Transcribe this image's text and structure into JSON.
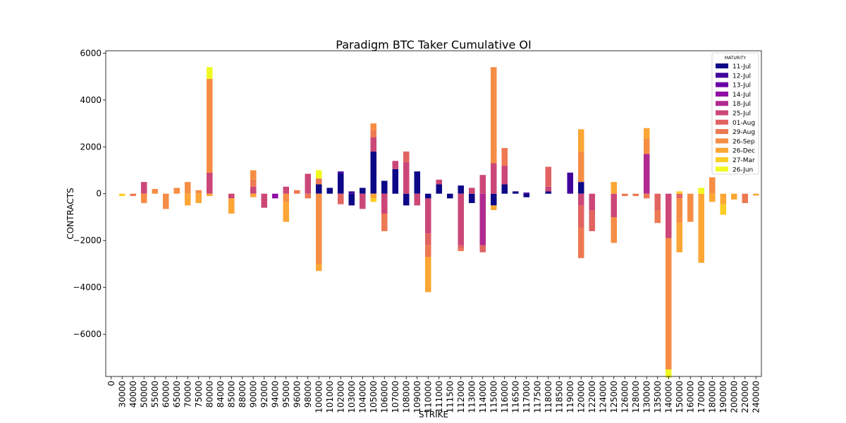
{
  "chart_data": {
    "type": "bar",
    "stacked": true,
    "title": "Paradigm BTC Taker Cumulative OI",
    "xlabel": "STRIKE",
    "ylabel": "CONTRACTS",
    "ylim": [
      -7800,
      6100
    ],
    "yticks": [
      -6000,
      -4000,
      -2000,
      0,
      2000,
      4000,
      6000
    ],
    "ytick_labels": [
      "−6000",
      "−4000",
      "−2000",
      "0",
      "2000",
      "4000",
      "6000"
    ],
    "legend_placement": "top-right",
    "legend_title": "MATURITY",
    "categories": [
      "0",
      "30000",
      "40000",
      "50000",
      "55000",
      "60000",
      "65000",
      "70000",
      "75000",
      "80000",
      "84000",
      "85000",
      "88000",
      "90000",
      "92000",
      "94000",
      "95000",
      "96000",
      "98000",
      "100000",
      "101000",
      "102000",
      "103000",
      "104000",
      "105000",
      "106000",
      "107000",
      "108000",
      "109000",
      "110000",
      "111000",
      "111500",
      "112000",
      "113000",
      "114000",
      "115000",
      "116000",
      "116500",
      "117000",
      "117500",
      "118000",
      "118500",
      "119000",
      "120000",
      "122000",
      "124000",
      "125000",
      "126000",
      "128000",
      "130000",
      "135000",
      "140000",
      "150000",
      "160000",
      "170000",
      "180000",
      "190000",
      "200000",
      "220000",
      "240000"
    ],
    "series": [
      {
        "name": "11-Jul",
        "color": "#0d0887",
        "values": [
          0,
          0,
          0,
          0,
          0,
          0,
          0,
          0,
          0,
          0,
          0,
          0,
          0,
          0,
          0,
          0,
          0,
          0,
          0,
          400,
          250,
          850,
          -500,
          250,
          1800,
          550,
          1050,
          -500,
          950,
          -200,
          400,
          -200,
          350,
          -400,
          0,
          -500,
          400,
          100,
          -150,
          0,
          100,
          0,
          0,
          500,
          0,
          0,
          0,
          0,
          0,
          0,
          0,
          0,
          0,
          0,
          0,
          0,
          0,
          0,
          0,
          0
        ]
      },
      {
        "name": "12-Jul",
        "color": "#41049d",
        "values": [
          0,
          0,
          0,
          0,
          0,
          0,
          0,
          0,
          0,
          0,
          0,
          0,
          0,
          0,
          0,
          0,
          0,
          0,
          0,
          0,
          0,
          100,
          100,
          0,
          0,
          0,
          0,
          0,
          0,
          0,
          0,
          0,
          0,
          0,
          0,
          0,
          0,
          0,
          50,
          0,
          0,
          0,
          900,
          0,
          0,
          0,
          0,
          0,
          0,
          0,
          0,
          0,
          0,
          0,
          0,
          0,
          0,
          0,
          0,
          0
        ]
      },
      {
        "name": "13-Jul",
        "color": "#6a00a8",
        "values": [
          0,
          0,
          0,
          0,
          0,
          0,
          0,
          0,
          0,
          0,
          0,
          0,
          0,
          0,
          0,
          0,
          0,
          0,
          0,
          0,
          0,
          0,
          0,
          0,
          0,
          0,
          0,
          0,
          0,
          0,
          0,
          0,
          0,
          0,
          0,
          0,
          0,
          0,
          0,
          0,
          0,
          0,
          0,
          0,
          0,
          0,
          0,
          0,
          0,
          0,
          0,
          0,
          0,
          0,
          0,
          0,
          0,
          0,
          0,
          0
        ]
      },
      {
        "name": "14-Jul",
        "color": "#8f0da4",
        "values": [
          0,
          0,
          0,
          0,
          0,
          0,
          0,
          0,
          0,
          0,
          0,
          0,
          0,
          0,
          0,
          -200,
          0,
          0,
          0,
          0,
          0,
          0,
          0,
          0,
          0,
          0,
          0,
          0,
          0,
          0,
          0,
          0,
          0,
          0,
          0,
          0,
          0,
          0,
          0,
          0,
          0,
          0,
          0,
          0,
          0,
          0,
          0,
          0,
          0,
          0,
          0,
          0,
          0,
          0,
          0,
          0,
          0,
          0,
          0,
          0
        ]
      },
      {
        "name": "18-Jul",
        "color": "#b12a90",
        "values": [
          0,
          0,
          0,
          0,
          0,
          0,
          0,
          0,
          0,
          0,
          0,
          0,
          0,
          0,
          0,
          0,
          0,
          0,
          0,
          0,
          0,
          0,
          0,
          0,
          0,
          0,
          0,
          0,
          0,
          0,
          0,
          0,
          0,
          0,
          -2200,
          0,
          0,
          0,
          0,
          0,
          0,
          0,
          0,
          0,
          0,
          0,
          0,
          0,
          0,
          1700,
          0,
          0,
          0,
          0,
          0,
          0,
          0,
          0,
          0,
          0
        ]
      },
      {
        "name": "25-Jul",
        "color": "#cc4778",
        "values": [
          0,
          0,
          0,
          500,
          0,
          0,
          0,
          0,
          0,
          900,
          0,
          -200,
          0,
          300,
          -600,
          0,
          300,
          0,
          850,
          0,
          0,
          0,
          0,
          -650,
          600,
          -850,
          350,
          1350,
          -500,
          -1500,
          200,
          0,
          -2200,
          250,
          800,
          1300,
          800,
          0,
          0,
          0,
          200,
          0,
          0,
          -500,
          -700,
          0,
          -1000,
          0,
          0,
          0,
          0,
          -1900,
          0,
          0,
          0,
          0,
          0,
          0,
          0,
          0
        ]
      },
      {
        "name": "01-Aug",
        "color": "#e16462",
        "values": [
          0,
          0,
          0,
          0,
          0,
          0,
          0,
          0,
          0,
          0,
          0,
          0,
          0,
          0,
          0,
          0,
          0,
          0,
          0,
          0,
          0,
          -450,
          0,
          0,
          0,
          0,
          0,
          450,
          0,
          -500,
          0,
          0,
          -150,
          0,
          -300,
          0,
          0,
          0,
          0,
          0,
          850,
          0,
          0,
          -950,
          -900,
          0,
          0,
          0,
          0,
          0,
          -700,
          0,
          -200,
          0,
          0,
          0,
          0,
          0,
          0,
          0
        ]
      },
      {
        "name": "29-Aug",
        "color": "#ed7953",
        "values": [
          0,
          0,
          -100,
          0,
          0,
          0,
          0,
          0,
          0,
          0,
          0,
          0,
          0,
          300,
          0,
          0,
          0,
          150,
          -200,
          250,
          0,
          0,
          0,
          0,
          300,
          -750,
          0,
          0,
          0,
          -500,
          0,
          0,
          -100,
          0,
          0,
          0,
          750,
          0,
          0,
          0,
          0,
          0,
          0,
          -1300,
          0,
          0,
          0,
          -100,
          -100,
          -200,
          -550,
          0,
          0,
          0,
          0,
          0,
          0,
          0,
          -400,
          0
        ]
      },
      {
        "name": "26-Sep",
        "color": "#f68d45",
        "values": [
          0,
          0,
          0,
          -400,
          200,
          -650,
          250,
          500,
          150,
          4000,
          0,
          0,
          0,
          400,
          0,
          0,
          -350,
          0,
          0,
          -3000,
          0,
          0,
          0,
          0,
          300,
          0,
          0,
          0,
          0,
          0,
          0,
          0,
          0,
          0,
          0,
          4100,
          0,
          0,
          0,
          0,
          0,
          0,
          0,
          1300,
          0,
          0,
          -1100,
          0,
          0,
          650,
          0,
          -5600,
          -1050,
          -1200,
          0,
          700,
          0,
          0,
          0,
          0
        ]
      },
      {
        "name": "26-Dec",
        "color": "#fca636",
        "values": [
          0,
          0,
          0,
          0,
          0,
          0,
          0,
          -500,
          -400,
          -100,
          0,
          -650,
          0,
          -150,
          0,
          0,
          -850,
          0,
          0,
          -300,
          0,
          0,
          0,
          0,
          -200,
          0,
          0,
          0,
          0,
          -1500,
          0,
          0,
          0,
          0,
          0,
          -200,
          0,
          0,
          0,
          0,
          0,
          0,
          0,
          950,
          0,
          0,
          500,
          0,
          0,
          450,
          0,
          0,
          -1250,
          0,
          -2950,
          -350,
          -450,
          -250,
          0,
          -80
        ]
      },
      {
        "name": "27-Mar",
        "color": "#fccd25",
        "values": [
          0,
          -100,
          0,
          0,
          0,
          0,
          0,
          0,
          0,
          0,
          0,
          0,
          0,
          0,
          0,
          0,
          0,
          0,
          0,
          0,
          0,
          0,
          0,
          0,
          -150,
          0,
          0,
          0,
          0,
          0,
          0,
          0,
          0,
          0,
          0,
          0,
          0,
          0,
          0,
          0,
          0,
          0,
          0,
          0,
          0,
          0,
          0,
          0,
          0,
          0,
          0,
          0,
          100,
          0,
          0,
          0,
          -450,
          0,
          0,
          0
        ]
      },
      {
        "name": "26-Jun",
        "color": "#f0f921",
        "values": [
          0,
          0,
          0,
          0,
          0,
          0,
          0,
          0,
          0,
          500,
          0,
          0,
          0,
          0,
          0,
          0,
          0,
          0,
          0,
          350,
          0,
          0,
          0,
          0,
          0,
          0,
          0,
          0,
          0,
          0,
          0,
          0,
          0,
          0,
          0,
          0,
          0,
          0,
          0,
          0,
          0,
          0,
          0,
          0,
          0,
          0,
          0,
          0,
          0,
          0,
          0,
          -350,
          0,
          0,
          250,
          0,
          0,
          0,
          0,
          0
        ]
      }
    ]
  }
}
